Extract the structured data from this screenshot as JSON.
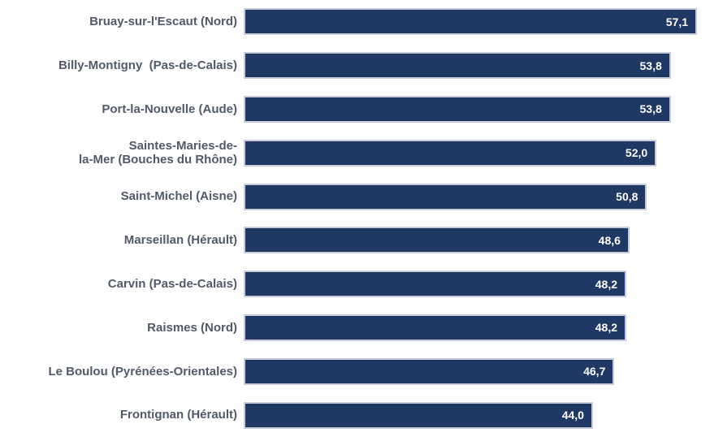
{
  "chart_data": {
    "type": "bar",
    "orientation": "horizontal",
    "title": "",
    "xlabel": "",
    "ylabel": "",
    "grid": false,
    "legend": false,
    "xlim": [
      0,
      57.1
    ],
    "decimal_format": "comma",
    "categories": [
      "Bruay-sur-l'Escaut (Nord)",
      "Billy-Montigny  (Pas-de-Calais)",
      "Port-la-Nouvelle (Aude)",
      "Saintes-Maries-de-\nla-Mer (Bouches du Rhône)",
      "Saint-Michel (Aisne)",
      "Marseillan (Hérault)",
      "Carvin (Pas-de-Calais)",
      "Raismes (Nord)",
      "Le Boulou (Pyrénées-Orientales)",
      "Frontignan (Hérault)"
    ],
    "values": [
      57.1,
      53.8,
      53.8,
      52.0,
      50.8,
      48.6,
      48.2,
      48.2,
      46.7,
      44.0
    ],
    "value_labels": [
      "57,1",
      "53,8",
      "53,8",
      "52,0",
      "50,8",
      "48,6",
      "48,2",
      "48,2",
      "46,7",
      "44,0"
    ],
    "colors": {
      "bar": "#1F3864",
      "bar_border": "#C7CBDA",
      "label_text": "#515A68",
      "value_text": "#FFFFFF",
      "background": "#FFFFFF"
    }
  }
}
